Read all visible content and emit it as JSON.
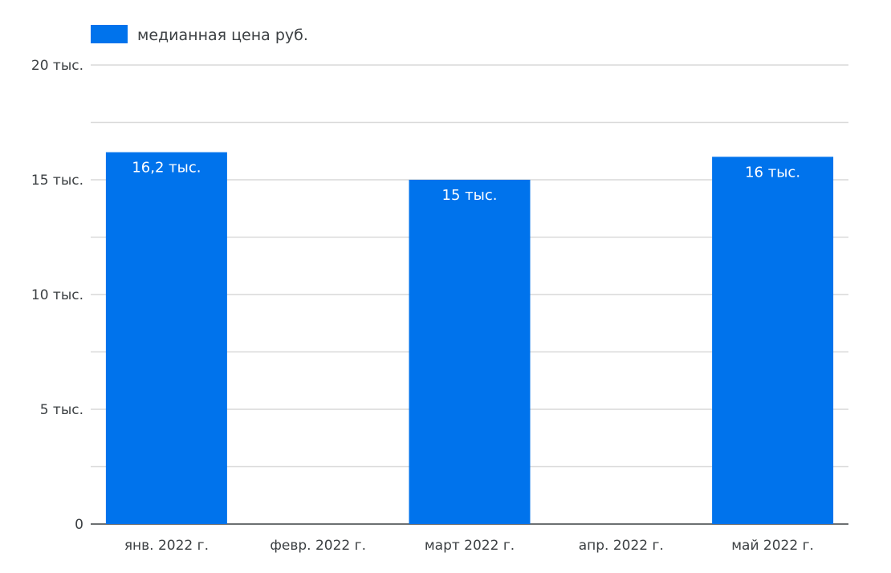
{
  "chart_data": {
    "type": "bar",
    "categories": [
      "янв. 2022 г.",
      "февр. 2022 г.",
      "март 2022 г.",
      "апр. 2022 г.",
      "май 2022 г."
    ],
    "series": [
      {
        "name": "медианная цена руб.",
        "values": [
          16200,
          null,
          15000,
          null,
          16000
        ],
        "data_labels": [
          "16,2 тыс.",
          "",
          "15 тыс.",
          "",
          "16 тыс."
        ]
      }
    ],
    "y_ticks": [
      0,
      5000,
      10000,
      15000,
      20000
    ],
    "y_tick_labels": [
      "0",
      "5 тыс.",
      "10 тыс.",
      "15 тыс.",
      "20 тыс."
    ],
    "ylim": [
      0,
      20000
    ],
    "grid": true,
    "legend_position": "top-left",
    "colors": {
      "bar": "#0073ec",
      "grid": "#d9d9d9",
      "axis": "#3c4043"
    }
  }
}
